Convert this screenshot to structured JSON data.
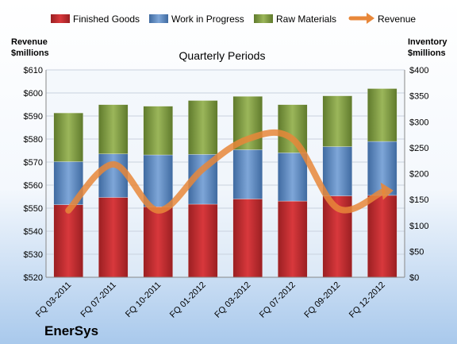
{
  "brand": "EnerSys",
  "chart_data": {
    "type": "bar",
    "subtitle": "Quarterly Periods",
    "categories": [
      "FQ 03-2011",
      "FQ 07-2011",
      "FQ 10-2011",
      "FQ 01-2012",
      "FQ 03-2012",
      "FQ 07-2012",
      "FQ 09-2012",
      "FQ 12-2012"
    ],
    "left_axis": {
      "label_line1": "Revenue",
      "label_line2": "$millions",
      "range": [
        520,
        610
      ],
      "ticks": [
        "$520",
        "$530",
        "$540",
        "$550",
        "$560",
        "$570",
        "$580",
        "$590",
        "$600",
        "$610"
      ]
    },
    "right_axis": {
      "label_line1": "Inventory",
      "label_line2": "$millions",
      "range": [
        0,
        400
      ],
      "ticks": [
        "$0",
        "$50",
        "$100",
        "$150",
        "$200",
        "$250",
        "$300",
        "$350",
        "$400"
      ]
    },
    "stacked": true,
    "series": [
      {
        "name": "Finished Goods",
        "axis": "right",
        "color": "#c0282d",
        "values": [
          140,
          154,
          136,
          141,
          151,
          147,
          157,
          158
        ]
      },
      {
        "name": "Work in Progress",
        "axis": "right",
        "color": "#4f81bd",
        "values": [
          83,
          84,
          100,
          96,
          95,
          93,
          95,
          104
        ]
      },
      {
        "name": "Raw Materials",
        "axis": "right",
        "color": "#77933c",
        "values": [
          94,
          95,
          94,
          104,
          103,
          93,
          98,
          102
        ]
      },
      {
        "name": "Revenue",
        "axis": "left",
        "type": "line",
        "color": "#e8873a",
        "values": [
          549,
          569,
          549,
          567,
          580,
          580,
          550,
          557
        ]
      }
    ],
    "legend_position": "top",
    "grid": true
  }
}
